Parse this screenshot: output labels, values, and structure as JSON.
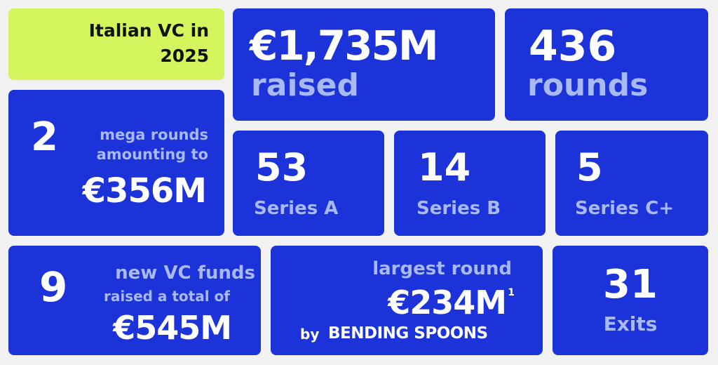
{
  "header": {
    "title": "Italian VC in 2025"
  },
  "tiles": [
    {
      "value": "€1,735M",
      "label": "raised"
    },
    {
      "value": "436",
      "label": "rounds"
    },
    {
      "value": "2",
      "label": "mega rounds amounting to",
      "amount": "€356M"
    },
    {
      "value": "53",
      "label": "Series A"
    },
    {
      "value": "14",
      "label": "Series B"
    },
    {
      "value": "5",
      "label": "Series C+"
    },
    {
      "value": "9",
      "label": "new VC funds",
      "sublabel": "raised a total of",
      "amount": "€545M"
    },
    {
      "label": "largest round",
      "amount": "€234M",
      "footnote": "1",
      "prefix": "by",
      "company": "BENDING SPOONS"
    },
    {
      "value": "31",
      "label": "Exits"
    }
  ]
}
